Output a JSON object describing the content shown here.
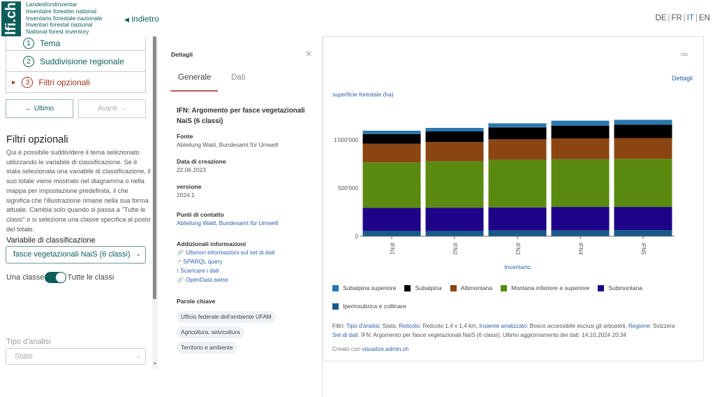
{
  "header": {
    "logo_text": "lfi.ch",
    "logo_lines": [
      "Landesforstinventar",
      "Inventaire forestier national",
      "Inventario forestale nazionale",
      "Inventari forestal naziunal",
      "National forest inventory"
    ],
    "back_label": "indietro",
    "languages": [
      "DE",
      "FR",
      "IT",
      "EN"
    ],
    "active_language": "IT"
  },
  "sidebar": {
    "steps": [
      {
        "num": "1",
        "label": "Tema"
      },
      {
        "num": "2",
        "label": "Suddivisione regionale"
      },
      {
        "num": "3",
        "label": "Filtri opzionali"
      }
    ],
    "prev_label": "Ultimo",
    "next_label": "Avanti",
    "section_title": "Filtri opzionali",
    "description": "Qui è possibile suddividere il tema selezionato utilizzando le variabile di classificazione. Se è stata selezionata una variabile di classificazione, il suo totale viene mostrato nel diagramma o nella mappa per impostazione predefinita, il che significa che l'illustrazione rimane nella sua forma attuale. Cambia solo quando si passa a \"Tutte le classi\" o si seleziona una classe specifica al posto del totale.",
    "variable_label": "Variabile di classificazione",
    "variable_value": "fasce vegetazionali NaiS (6 classi)",
    "toggle_left": "Una classe",
    "toggle_right": "Tutte le classi",
    "toggle_on": true,
    "analysis_label": "Tipo d'analisi",
    "analysis_value": "Stato"
  },
  "details": {
    "title": "Dettagli",
    "tabs": [
      "Generale",
      "Dati"
    ],
    "active_tab": "Generale",
    "dataset_title": "IFN: Argomento per fasce vegetazionali NaiS (6 classi)",
    "source_label": "Fonte",
    "source_value": "Abteilung Wald, Bundesamt für Umwelt",
    "created_label": "Data di creazione",
    "created_value": "22.06.2023",
    "version_label": "versione",
    "version_value": "2024.1",
    "contact_label": "Punti di contatto",
    "contact_value": "Abteilung Wald, Bundesamt für Umwelt",
    "more_label": "Addizionali informazioni",
    "links": [
      {
        "icon": "link-icon",
        "label": "Ulteriori informazioni sul set di dati"
      },
      {
        "icon": "external-link-icon",
        "label": "SPARQL query"
      },
      {
        "icon": "download-icon",
        "label": "Scaricare i dati"
      },
      {
        "icon": "link-icon",
        "label": "OpenData.swiss"
      }
    ],
    "keywords_label": "Parole chiave",
    "keywords": [
      "Ufficio federale dell'ambiente UFAM",
      "Agricoltura, selvicoltura",
      "Territorio e ambiente"
    ]
  },
  "chart_card": {
    "menu_label": "ooo",
    "details_link": "Dettagli",
    "filters": {
      "prefix": "Filtri:",
      "items": [
        {
          "k": "Tipo d'analisi",
          "v": "Stato"
        },
        {
          "k": "Reticolo",
          "v": "Reticolo 1,4 x 1,4 km"
        },
        {
          "k": "Insieme analizzato",
          "v": "Bosco accessibile esclusi gli arbusteti"
        },
        {
          "k": "Regione",
          "v": "Svizzera"
        }
      ]
    },
    "dataset": {
      "k": "Set di dati",
      "v": "IFN: Argomento per fasce vegetazionali NaiS (6 classi), Ultimo aggiornamento dei dati: 14.10.2024 20:34"
    },
    "created_with": "Creato con",
    "created_link": "visualize.admin.ch"
  },
  "chart_data": {
    "type": "bar",
    "stacked": true,
    "ylabel": "superficie forestale (ha)",
    "xlabel": "Inventario",
    "categories": [
      "IFN1",
      "IFN2",
      "IFN3",
      "IFN4",
      "IFN5"
    ],
    "yticks": [
      {
        "v": 0,
        "label": "0"
      },
      {
        "v": 500000,
        "label": "500'000"
      },
      {
        "v": 1000000,
        "label": "1'000'000"
      }
    ],
    "ylim": [
      0,
      1230000
    ],
    "grid": true,
    "legend_position": "bottom",
    "series": [
      {
        "name": "Iperinsubrica e collinare",
        "color": "#18598a",
        "values": [
          55000,
          55000,
          60000,
          60000,
          65000
        ]
      },
      {
        "name": "Submontana",
        "color": "#1d0388",
        "values": [
          239000,
          241000,
          239000,
          244000,
          239000
        ]
      },
      {
        "name": "Montana inferiore e superiore",
        "color": "#5a8b10",
        "values": [
          472000,
          482000,
          494000,
          494000,
          498000
        ]
      },
      {
        "name": "Altimontana",
        "color": "#8a4512",
        "values": [
          193000,
          200000,
          212000,
          216000,
          215000
        ]
      },
      {
        "name": "Subalpina",
        "color": "#000000",
        "values": [
          101000,
          109000,
          123000,
          131000,
          140000
        ]
      },
      {
        "name": "Subalpina superiore",
        "color": "#2a78ae",
        "values": [
          34000,
          36000,
          43000,
          53000,
          50000
        ]
      }
    ],
    "legend_order": [
      "Subalpina superiore",
      "Subalpina",
      "Altimontana",
      "Montana inferiore e superiore",
      "Submontana",
      "Iperinsubrica e collinare"
    ]
  }
}
